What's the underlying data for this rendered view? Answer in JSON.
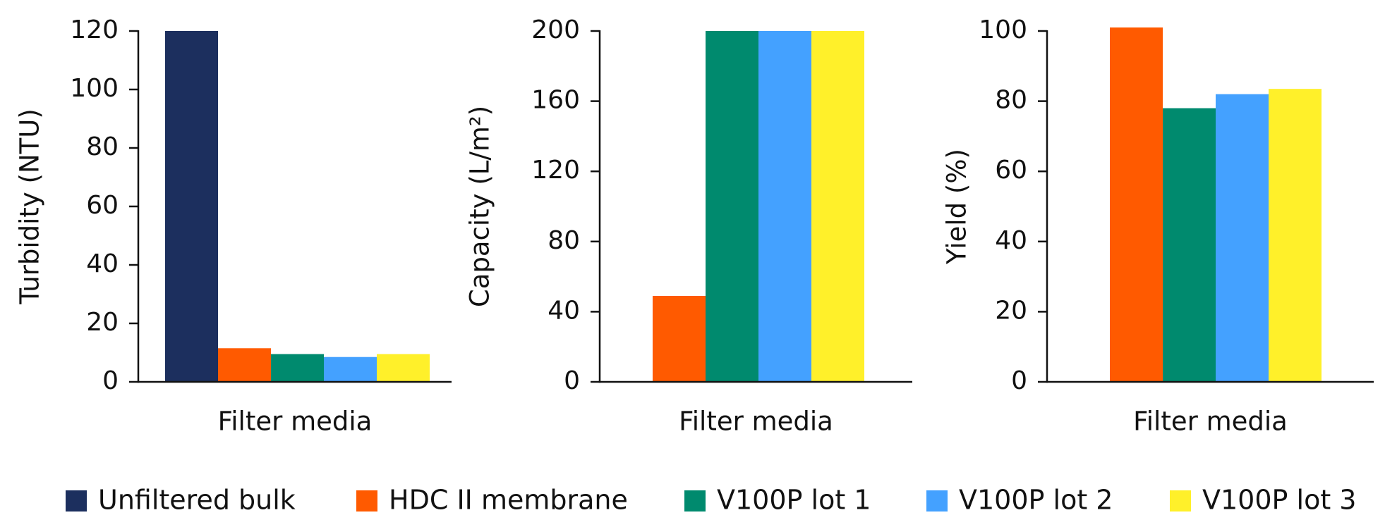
{
  "legend": {
    "entries": [
      {
        "name": "Unfiltered bulk",
        "color": "#1c2f5e"
      },
      {
        "name": "HDC II membrane",
        "color": "#ff5a00"
      },
      {
        "name": "V100P lot 1",
        "color": "#008a6e"
      },
      {
        "name": "V100P lot 2",
        "color": "#44a1ff"
      },
      {
        "name": "V100P lot 3",
        "color": "#fff02a"
      }
    ]
  },
  "chart_data": [
    {
      "type": "bar",
      "xlabel": "Filter media",
      "ylabel": "Turbidity (NTU)",
      "values": [
        120,
        11.5,
        9.5,
        8.5,
        9.5
      ],
      "ylim": [
        0,
        120
      ],
      "yticks": [
        0,
        20,
        40,
        60,
        80,
        100,
        120
      ]
    },
    {
      "type": "bar",
      "xlabel": "Filter media",
      "ylabel": "Capacity (L/m²)",
      "values": [
        null,
        49,
        200,
        200,
        200
      ],
      "ylim": [
        0,
        200
      ],
      "yticks": [
        0,
        40,
        80,
        120,
        160,
        200
      ]
    },
    {
      "type": "bar",
      "xlabel": "Filter media",
      "ylabel": "Yield (%)",
      "values": [
        null,
        101,
        78,
        82,
        83.5
      ],
      "ylim": [
        0,
        100
      ],
      "yticks": [
        0,
        20,
        40,
        60,
        80,
        100
      ]
    }
  ]
}
